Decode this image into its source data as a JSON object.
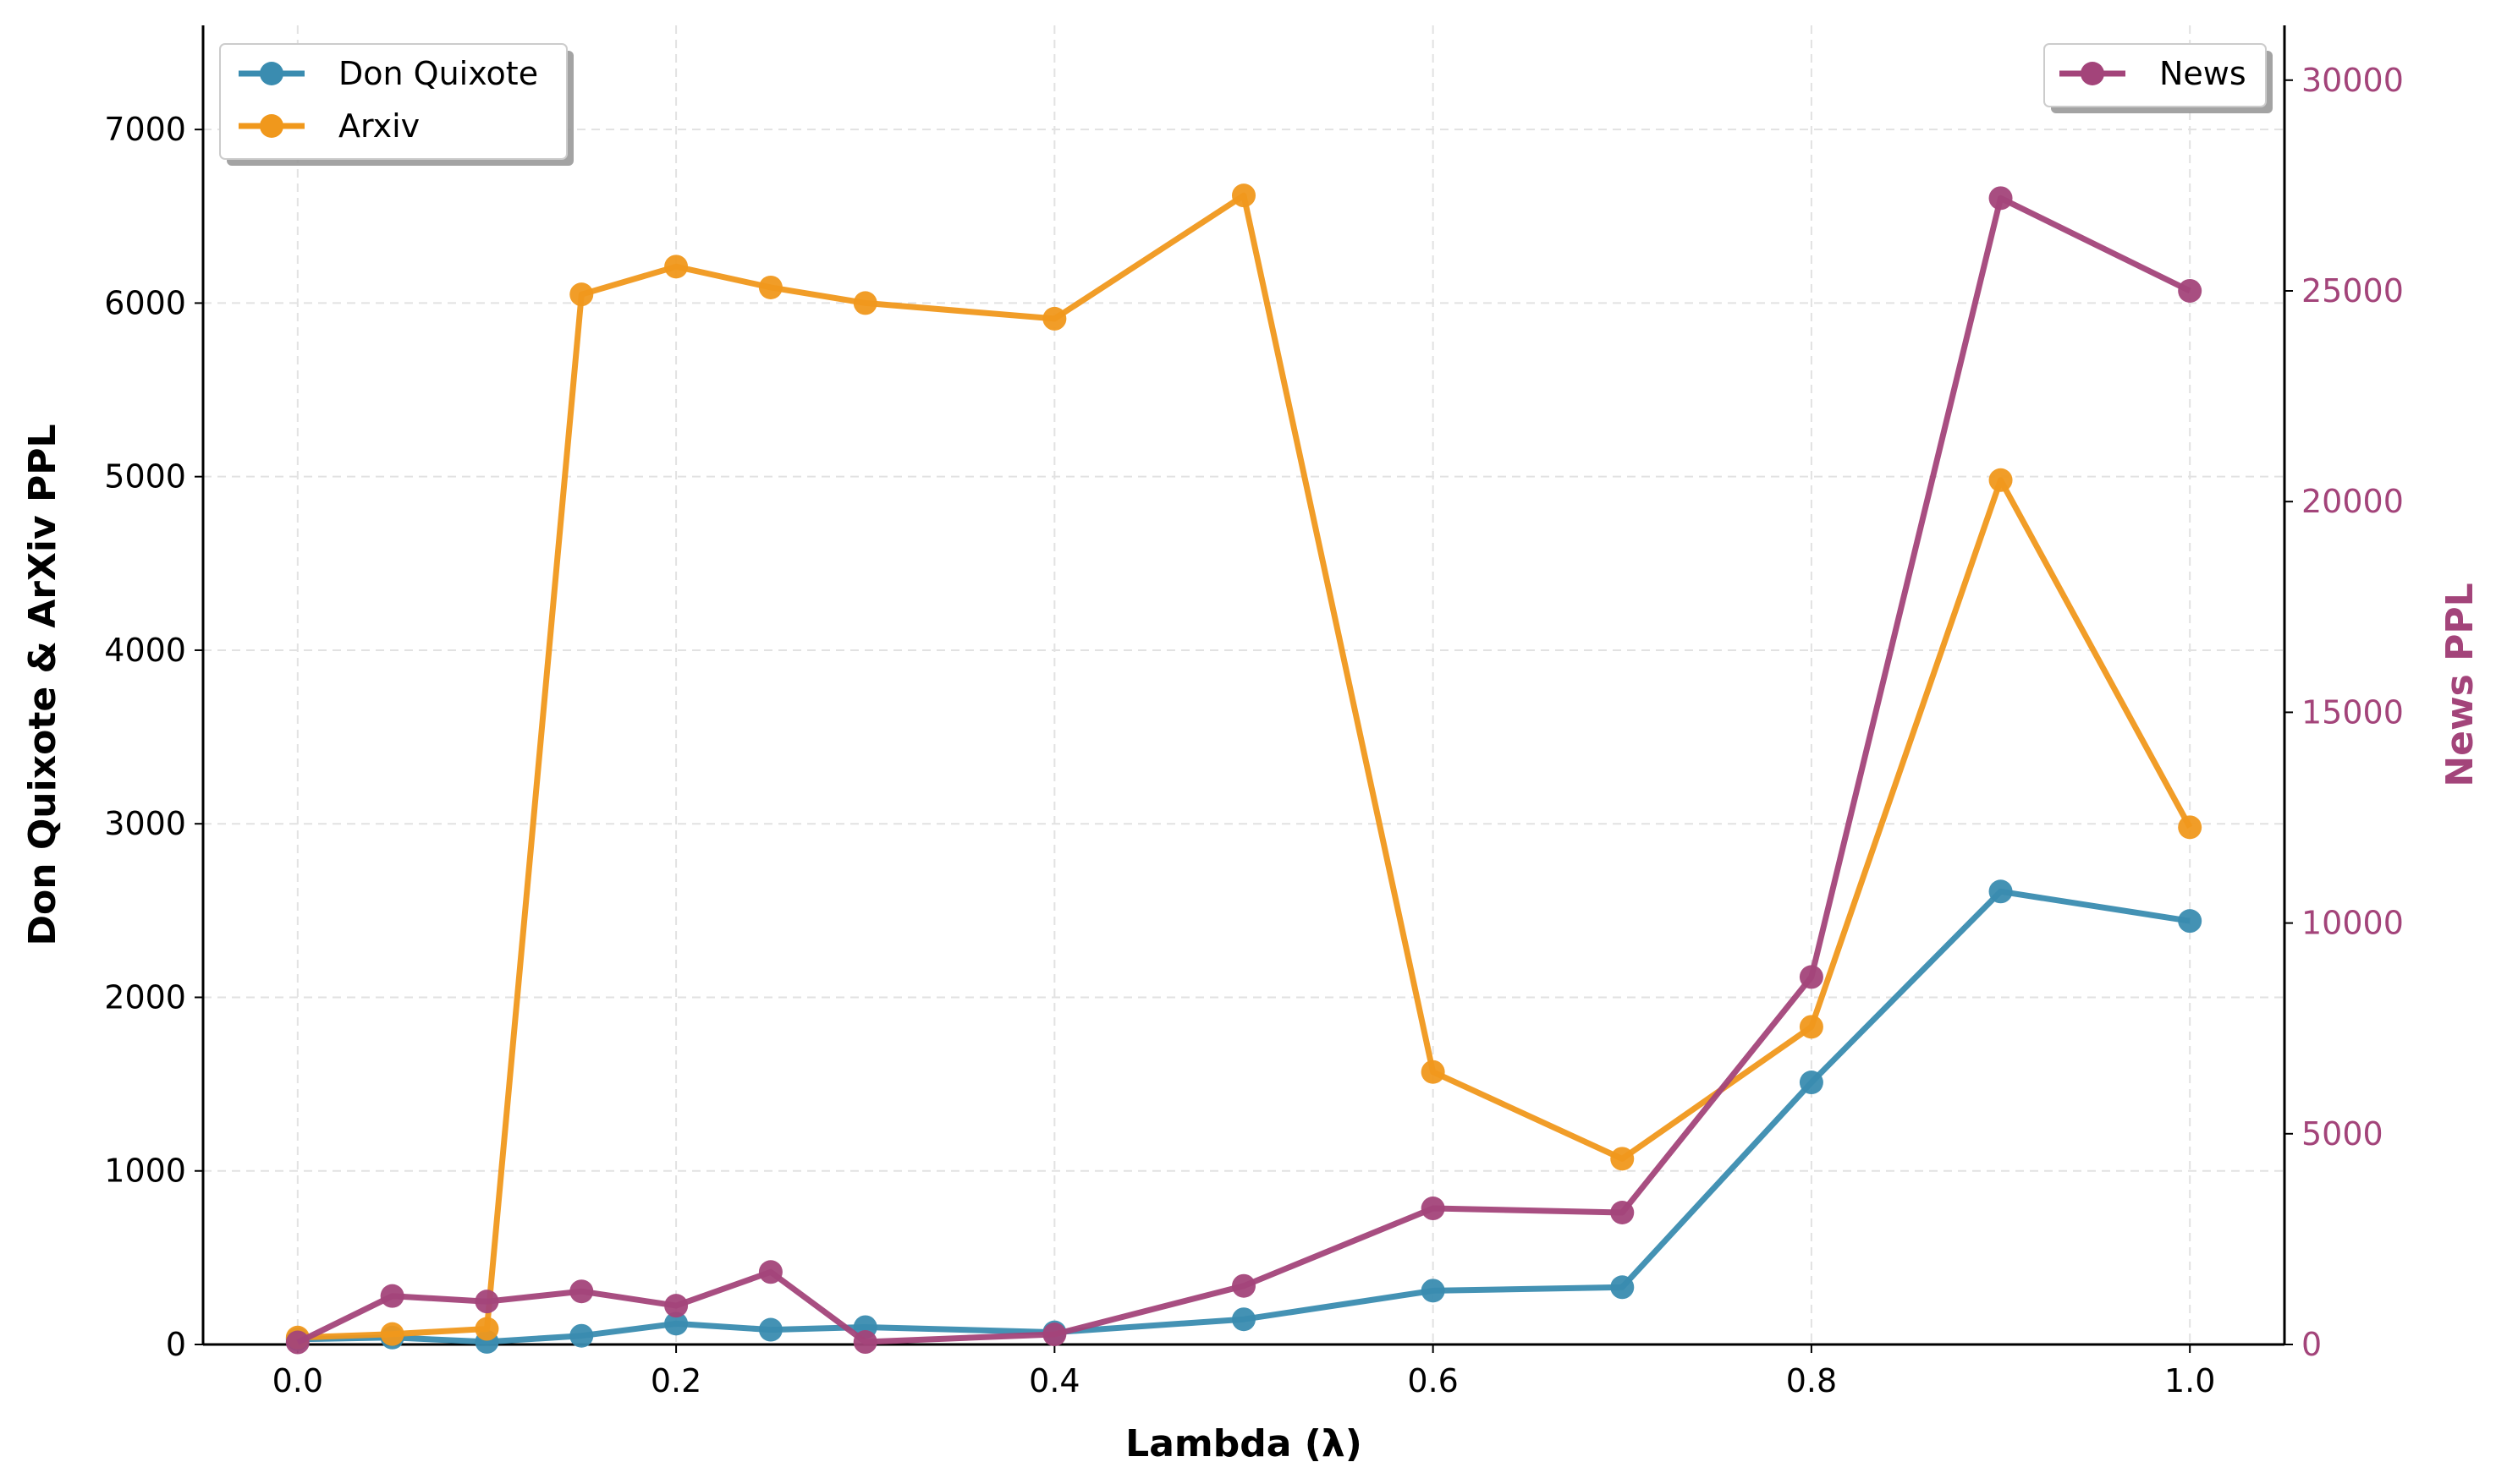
{
  "chart_data": {
    "type": "line",
    "xlabel": "Lambda (λ)",
    "ylabel_left": "Don Quixote & ArXiv PPL",
    "ylabel_right": "News PPL",
    "x": [
      0.0,
      0.05,
      0.1,
      0.15,
      0.2,
      0.25,
      0.3,
      0.4,
      0.5,
      0.6,
      0.7,
      0.8,
      0.9,
      1.0
    ],
    "xlim": [
      -0.05,
      1.05
    ],
    "xticks": [
      "0.0",
      "0.2",
      "0.4",
      "0.6",
      "0.8",
      "1.0"
    ],
    "ylim_left": [
      0,
      7600
    ],
    "yticks_left": [
      "0",
      "1000",
      "2000",
      "3000",
      "4000",
      "5000",
      "6000",
      "7000"
    ],
    "ylim_right": [
      0,
      31300
    ],
    "yticks_right": [
      "0",
      "5000",
      "10000",
      "15000",
      "20000",
      "25000",
      "30000"
    ],
    "grid": true,
    "series": [
      {
        "name": "Don Quixote",
        "axis": "left",
        "color": "#3A8CB0",
        "values": [
          30,
          40,
          15,
          50,
          120,
          85,
          100,
          70,
          145,
          310,
          330,
          1510,
          2610,
          2440
        ]
      },
      {
        "name": "Arxiv",
        "axis": "left",
        "color": "#F0981C",
        "values": [
          40,
          60,
          90,
          6050,
          6210,
          6090,
          6000,
          5910,
          6620,
          1570,
          1070,
          1830,
          4980,
          2980
        ]
      },
      {
        "name": "News",
        "axis": "right",
        "color": "#A3447A",
        "values": [
          50,
          1150,
          1020,
          1260,
          920,
          1720,
          60,
          240,
          1390,
          3230,
          3130,
          8720,
          27200,
          25000
        ]
      }
    ],
    "legend_left": [
      "Don Quixote",
      "Arxiv"
    ],
    "legend_right": [
      "News"
    ],
    "legend_placement": [
      "top-left",
      "top-right"
    ]
  }
}
